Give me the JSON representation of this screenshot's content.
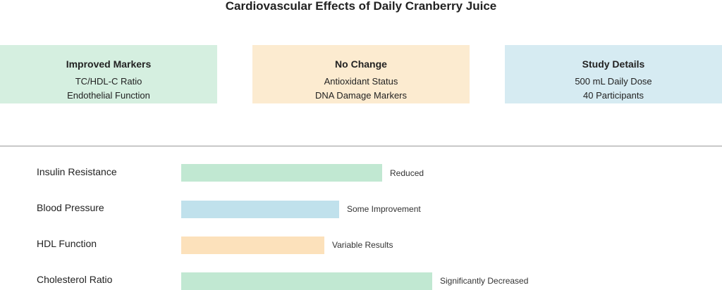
{
  "header": {
    "title": "Cardiovascular Effects of Daily Cranberry Juice"
  },
  "cards": [
    {
      "title": "Improved Markers",
      "lines": [
        "TC/HDL-C Ratio",
        "Endothelial Function"
      ]
    },
    {
      "title": "No Change",
      "lines": [
        "Antioxidant Status",
        "DNA Damage Markers"
      ]
    },
    {
      "title": "Study Details",
      "lines": [
        "500 mL Daily Dose",
        "40 Participants"
      ]
    }
  ],
  "effects": [
    {
      "label": "Insulin Resistance",
      "result": "Reduced"
    },
    {
      "label": "Blood Pressure",
      "result": "Some Improvement"
    },
    {
      "label": "HDL Function",
      "result": "Variable Results"
    },
    {
      "label": "Cholesterol Ratio",
      "result": "Significantly Decreased"
    }
  ]
}
